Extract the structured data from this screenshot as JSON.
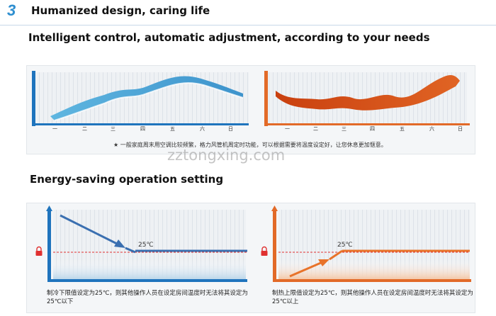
{
  "header": {
    "section_number": "3",
    "section_title": "Humanized design, caring life"
  },
  "intelligent": {
    "title": "Intelligent control, automatic adjustment, according to your needs",
    "weekdays": [
      "一",
      "二",
      "三",
      "四",
      "五",
      "六",
      "日"
    ],
    "note": "★ 一般家庭周末用空调比较频繁，格力风管机周定时功能，可以根据需要将温度设定好，让您休息更加惬意。",
    "colors": {
      "cool": "#4aa3d6",
      "heat": "#d9531a"
    }
  },
  "watermark": "zztongxing.com",
  "energy": {
    "title": "Energy-saving operation setting",
    "cool_temp_label": "25℃",
    "heat_temp_label": "25℃",
    "cool_caption": "制冷下限值设定为25℃，则其他操作人员在设定房间温度时无法将其设定为25℃以下",
    "heat_caption": "制热上限值设定为25℃，则其他操作人员在设定房间温度时无法将其设定为25℃以上",
    "lock_icon_left": "lock-icon",
    "lock_icon_right": "lock-icon",
    "colors": {
      "cool": "#3a6fb0",
      "heat": "#e8732a",
      "limit": "#e03030"
    }
  }
}
